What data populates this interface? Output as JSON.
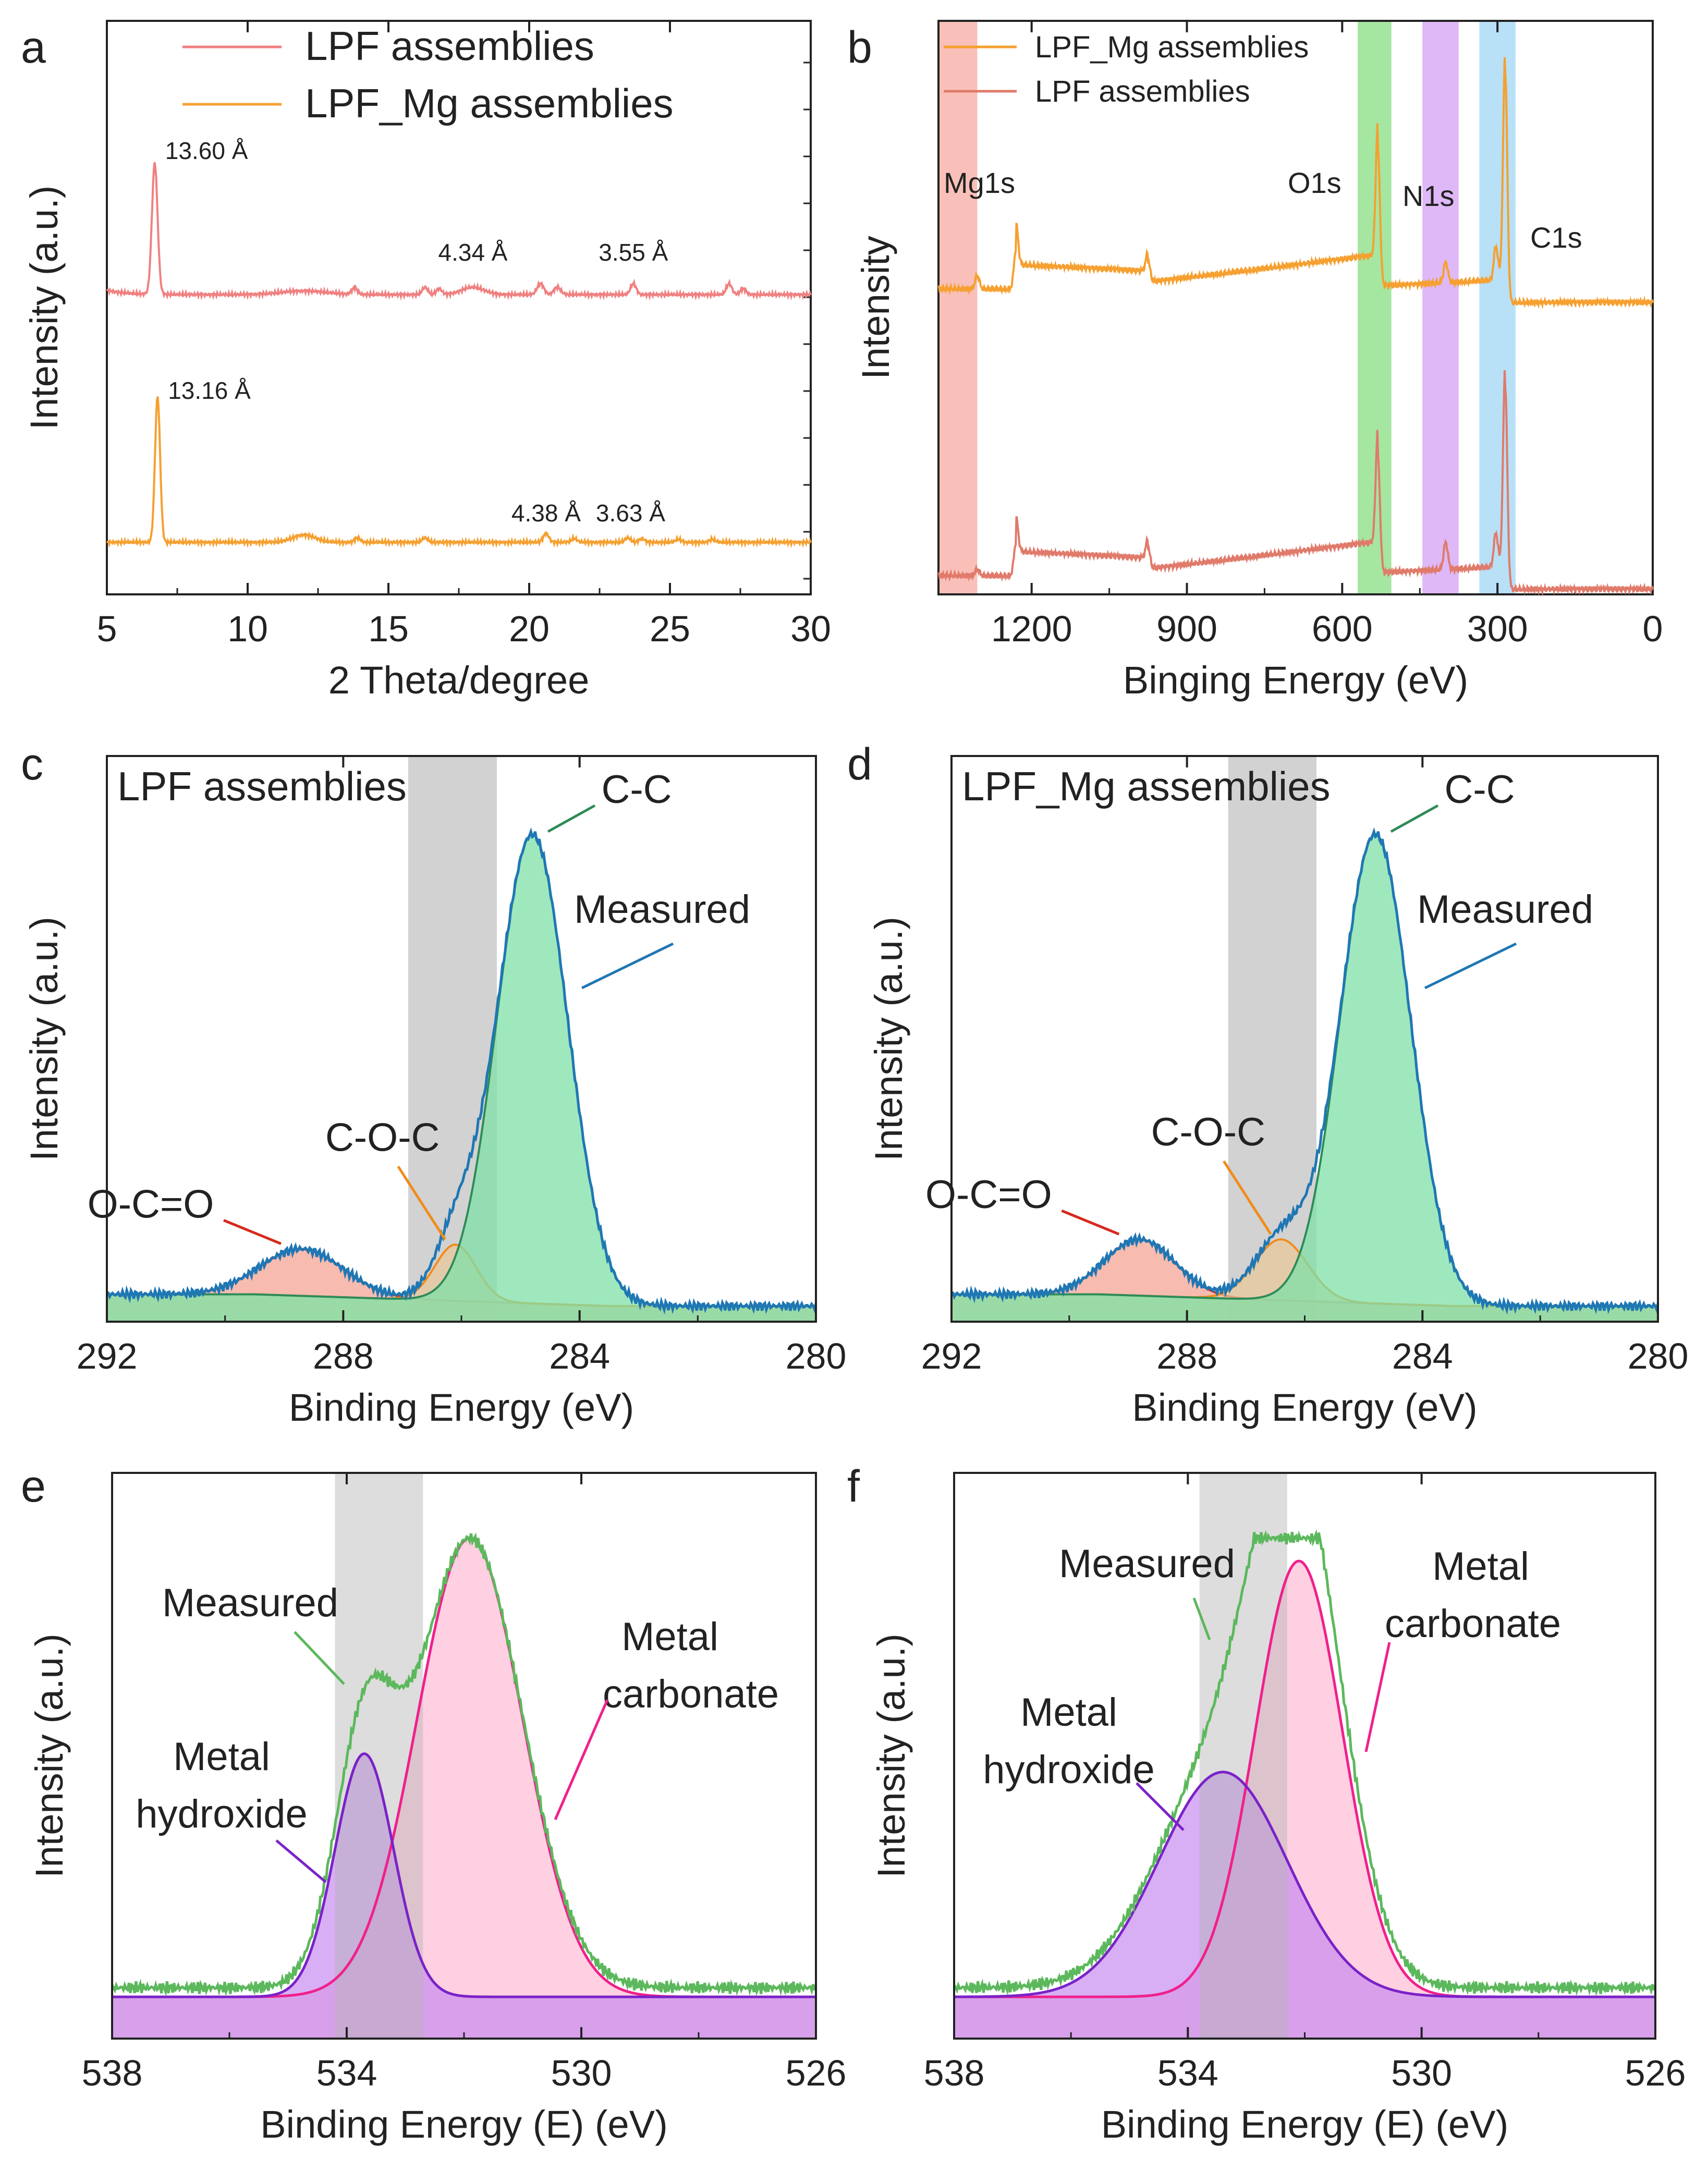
{
  "colors": {
    "lpf": "#f08080",
    "lpf_mg": "#f5a030",
    "lpf_b": "#e07a6a",
    "measured_blue": "#1f77b4",
    "cc_fill": "#7fe0a8",
    "cc_line": "#2e8b57",
    "coc_fill": "#e8c89c",
    "coc_line": "#f08c1c",
    "oco_fill": "#f4a494",
    "oco_line": "#d62a1c",
    "measured_green": "#5cb85c",
    "carbonate_fill": "#ffc8dc",
    "carbonate_line": "#f0208c",
    "hydroxide_fill": "#c88cf0",
    "hydroxide_line": "#7a22c8",
    "shade_grey": "#b4b4b4",
    "band_mg": "#f8b0a8",
    "band_o": "#8ee08a",
    "band_n": "#d7a6f5",
    "band_c": "#a6d8f5"
  },
  "chart_data": [
    {
      "panel": "a",
      "type": "line",
      "xlabel": "2 Theta/degree",
      "ylabel": "Intensity (a.u.)",
      "xlim": [
        5,
        30
      ],
      "xticks": [
        5,
        10,
        15,
        20,
        25,
        30
      ],
      "legend": [
        "LPF assemblies",
        "LPF_Mg assemblies"
      ],
      "series": [
        {
          "name": "LPF assemblies",
          "baseline": 1.0,
          "peaks": [
            [
              6.7,
              1.8,
              0.1
            ],
            [
              13.8,
              0.09,
              0.1
            ],
            [
              16.3,
              0.1,
              0.1
            ],
            [
              16.8,
              0.08,
              0.1
            ],
            [
              18.0,
              0.1,
              0.4
            ],
            [
              20.4,
              0.15,
              0.12
            ],
            [
              21.0,
              0.1,
              0.12
            ],
            [
              23.7,
              0.15,
              0.1
            ],
            [
              27.1,
              0.15,
              0.1
            ],
            [
              27.6,
              0.08,
              0.1
            ],
            [
              12.0,
              0.05,
              0.8
            ]
          ],
          "annotations": [
            {
              "x": 6.7,
              "text": "13.60 Å"
            },
            {
              "x": 18.0,
              "text": "4.34 Å"
            },
            {
              "x": 23.7,
              "text": "3.55 Å"
            }
          ]
        },
        {
          "name": "LPF_Mg assemblies",
          "baseline": 0.0,
          "peaks": [
            [
              6.8,
              2.0,
              0.09
            ],
            [
              12.0,
              0.1,
              0.4
            ],
            [
              13.9,
              0.06,
              0.1
            ],
            [
              16.3,
              0.06,
              0.1
            ],
            [
              20.6,
              0.12,
              0.1
            ],
            [
              21.6,
              0.05,
              0.1
            ],
            [
              23.5,
              0.06,
              0.1
            ],
            [
              24.0,
              0.05,
              0.1
            ],
            [
              25.3,
              0.04,
              0.1
            ],
            [
              26.5,
              0.04,
              0.1
            ]
          ],
          "annotations": [
            {
              "x": 6.8,
              "text": "13.16 Å"
            },
            {
              "x": 20.6,
              "text": "4.38 Å"
            },
            {
              "x": 23.6,
              "text": "3.63 Å"
            }
          ]
        }
      ]
    },
    {
      "panel": "b",
      "type": "line",
      "xlabel": "Binging Energy (eV)",
      "ylabel": "Intensity",
      "xlim": [
        1380,
        0
      ],
      "xticks": [
        1200,
        900,
        600,
        300,
        0
      ],
      "legend": [
        "LPF_Mg assemblies",
        "LPF assemblies"
      ],
      "bands": [
        {
          "label": "Mg1s",
          "range": [
            1305,
            1380
          ]
        },
        {
          "label": "O1s",
          "range": [
            505,
            570
          ]
        },
        {
          "label": "N1s",
          "range": [
            375,
            445
          ]
        },
        {
          "label": "C1s",
          "range": [
            265,
            335
          ]
        }
      ],
      "series": [
        {
          "name": "LPF_Mg assemblies",
          "offset": 1.0,
          "peaks": [
            [
              1305,
              0.1
            ],
            [
              1230,
              0.3
            ],
            [
              975,
              0.15
            ],
            [
              531,
              1.0
            ],
            [
              400,
              0.15
            ],
            [
              303,
              0.25
            ],
            [
              285,
              1.7
            ]
          ]
        },
        {
          "name": "LPF assemblies",
          "offset": 0.0,
          "peaks": [
            [
              1305,
              0.05
            ],
            [
              1230,
              0.25
            ],
            [
              975,
              0.15
            ],
            [
              531,
              0.85
            ],
            [
              400,
              0.2
            ],
            [
              303,
              0.25
            ],
            [
              285,
              1.5
            ]
          ]
        }
      ]
    },
    {
      "panel": "c",
      "type": "area",
      "title": "LPF assemblies",
      "xlabel": "Binding Energy (eV)",
      "ylabel": "Intensity (a.u.)",
      "xlim": [
        292,
        280
      ],
      "xticks": [
        292,
        288,
        284,
        280
      ],
      "shade": [
        285.4,
        286.9
      ],
      "components": [
        {
          "name": "C-C",
          "center": 284.8,
          "height": 1.0,
          "sigma": 0.6
        },
        {
          "name": "C-O-C",
          "center": 286.1,
          "height": 0.12,
          "sigma": 0.35
        },
        {
          "name": "O-C=O",
          "center": 288.7,
          "height": 0.1,
          "sigma": 0.7
        }
      ],
      "labels": {
        "cc": "C-C",
        "measured": "Measured",
        "coc": "C-O-C",
        "oco": "O-C=O"
      }
    },
    {
      "panel": "d",
      "type": "area",
      "title": "LPF_Mg assemblies",
      "xlabel": "Binding Energy (eV)",
      "ylabel": "Intensity (a.u.)",
      "xlim": [
        292,
        280
      ],
      "xticks": [
        292,
        288,
        284,
        280
      ],
      "shade": [
        285.8,
        287.3
      ],
      "components": [
        {
          "name": "C-C",
          "center": 284.8,
          "height": 1.0,
          "sigma": 0.6
        },
        {
          "name": "C-O-C",
          "center": 286.4,
          "height": 0.13,
          "sigma": 0.45
        },
        {
          "name": "O-C=O",
          "center": 288.8,
          "height": 0.12,
          "sigma": 0.6
        }
      ],
      "labels": {
        "cc": "C-C",
        "measured": "Measured",
        "coc": "C-O-C",
        "oco": "O-C=O"
      }
    },
    {
      "panel": "e",
      "type": "area",
      "xlabel": "Binding Energy (E) (eV)",
      "ylabel": "Intensity (a.u.)",
      "xlim": [
        538,
        526
      ],
      "xticks": [
        538,
        534,
        530,
        526
      ],
      "shade": [
        532.7,
        534.2
      ],
      "components": [
        {
          "name": "Metal carbonate",
          "center": 531.9,
          "height": 1.0,
          "sigma": 0.9
        },
        {
          "name": "Metal hydroxide",
          "center": 533.7,
          "height": 0.53,
          "sigma": 0.5
        }
      ],
      "labels": {
        "measured": "Measured",
        "carbonate": [
          "Metal",
          "carbonate"
        ],
        "hydroxide": [
          "Metal",
          "hydroxide"
        ]
      }
    },
    {
      "panel": "f",
      "type": "area",
      "xlabel": "Binding Energy (E) (eV)",
      "ylabel": "Intensity (a.u.)",
      "xlim": [
        538,
        526
      ],
      "xticks": [
        538,
        534,
        530,
        526
      ],
      "shade": [
        532.3,
        533.8
      ],
      "components": [
        {
          "name": "Metal carbonate",
          "center": 532.1,
          "height": 0.95,
          "sigma": 0.75
        },
        {
          "name": "Metal hydroxide",
          "center": 533.4,
          "height": 0.49,
          "sigma": 1.1
        }
      ],
      "labels": {
        "measured": "Measured",
        "carbonate": [
          "Metal",
          "carbonate"
        ],
        "hydroxide": [
          "Metal",
          "hydroxide"
        ]
      }
    }
  ]
}
